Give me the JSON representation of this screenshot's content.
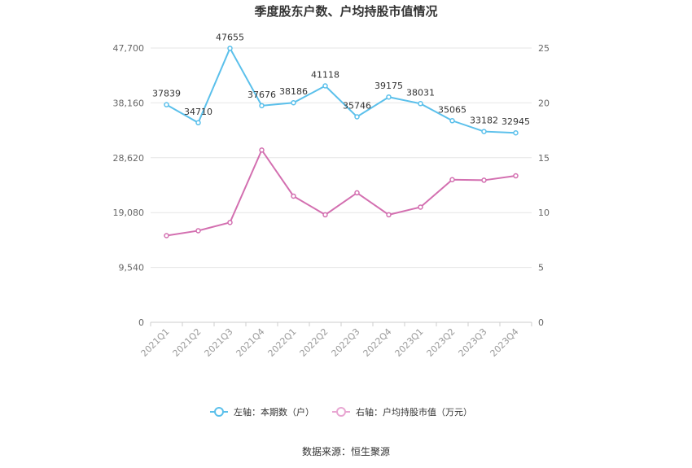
{
  "chart_data": {
    "type": "line",
    "title": "季度股东户数、户均持股市值情况",
    "categories": [
      "2021Q1",
      "2021Q2",
      "2021Q3",
      "2021Q4",
      "2022Q1",
      "2022Q2",
      "2022Q3",
      "2022Q4",
      "2023Q1",
      "2023Q2",
      "2023Q3",
      "2023Q4"
    ],
    "left_axis": {
      "ticks": [
        "0",
        "9,540",
        "19,080",
        "28,620",
        "38,160",
        "47,700"
      ],
      "ylim": [
        0,
        47700
      ]
    },
    "right_axis": {
      "ticks": [
        "0",
        "5",
        "10",
        "15",
        "20",
        "25"
      ],
      "ylim": [
        0,
        25
      ]
    },
    "series": [
      {
        "name": "左轴：本期数（户）",
        "axis": "left",
        "color": "#5bc0eb",
        "values": [
          37839,
          34710,
          47655,
          37676,
          38186,
          41118,
          35746,
          39175,
          38031,
          35065,
          33182,
          32945
        ],
        "labels": [
          "37839",
          "34710",
          "47655",
          "37676",
          "38186",
          "41118",
          "35746",
          "39175",
          "38031",
          "35065",
          "33182",
          "32945"
        ]
      },
      {
        "name": "右轴：户均持股市值（万元）",
        "axis": "right",
        "color": "#d36fb0",
        "values": [
          7.9,
          8.35,
          9.1,
          15.7,
          11.5,
          9.8,
          11.8,
          9.8,
          10.5,
          13.0,
          12.95,
          13.35
        ]
      }
    ],
    "grid": true,
    "legend_position": "bottom"
  },
  "source": "数据来源：恒生聚源"
}
